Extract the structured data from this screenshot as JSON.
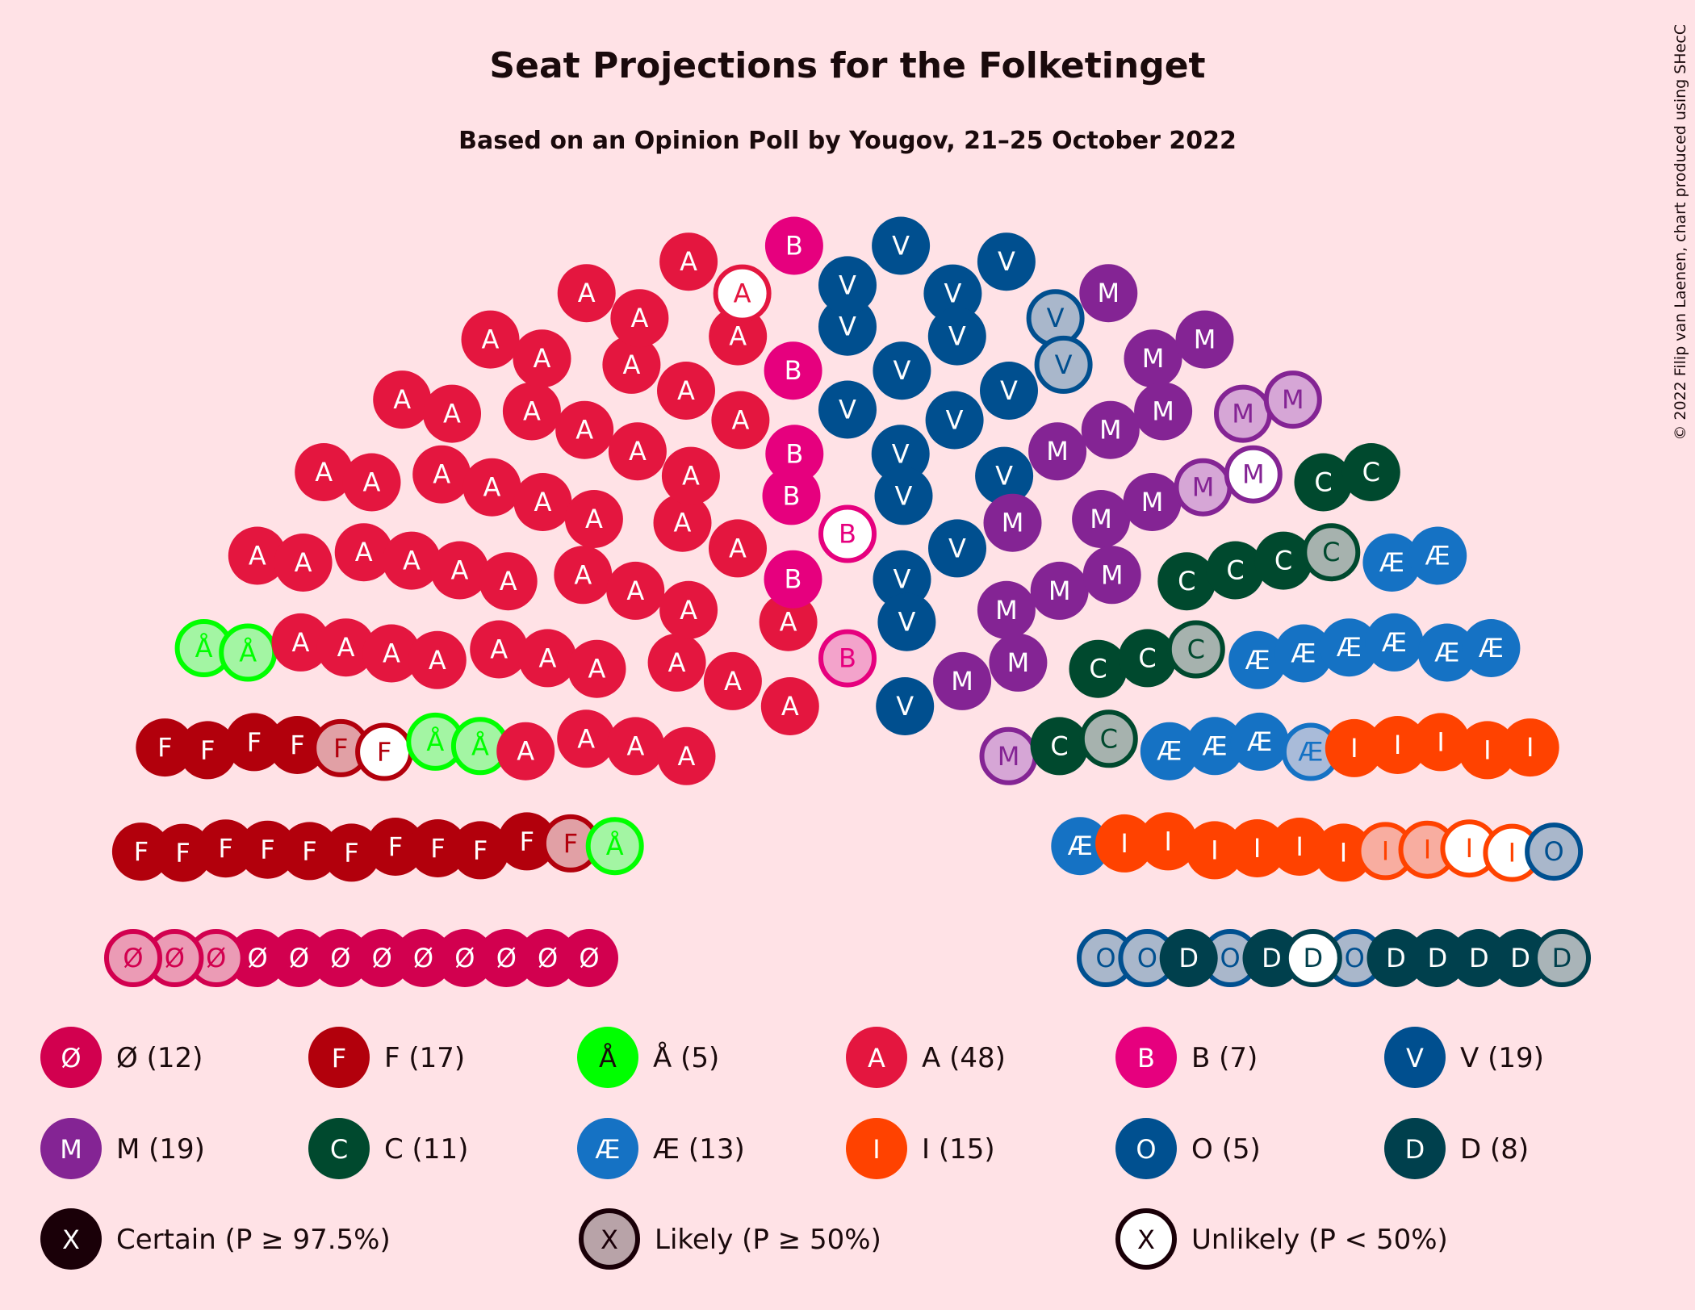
{
  "chart_data": {
    "type": "parliament",
    "title": "Seat Projections for the Folketinget",
    "subtitle": "Based on an Opinion Poll by Yougov, 21–25 October 2022",
    "credit": "© 2022 Filip van Laenen, chart produced using SHecC",
    "total_seats": 179,
    "parties": [
      {
        "symbol": "Ø",
        "label": "Ø (12)",
        "seats": 12,
        "certain": 9,
        "likely": 3,
        "unlikely": 0,
        "color": "#d2004f",
        "text_color": "#ffffff",
        "faded": "#eb9bb5"
      },
      {
        "symbol": "F",
        "label": "F (17)",
        "seats": 17,
        "certain": 14,
        "likely": 2,
        "unlikely": 1,
        "color": "#b2000c",
        "text_color": "#ffffff",
        "faded": "#e1a0a5"
      },
      {
        "symbol": "Å",
        "label": "Å (5)",
        "seats": 5,
        "certain": 0,
        "likely": 5,
        "unlikely": 0,
        "color": "#00ff00",
        "text_color": "#00c800",
        "faded": "#a3f5a3"
      },
      {
        "symbol": "A",
        "label": "A (48)",
        "seats": 48,
        "certain": 47,
        "likely": 0,
        "unlikely": 1,
        "color": "#e4163f",
        "text_color": "#ffffff",
        "faded": "#f0a0b0"
      },
      {
        "symbol": "B",
        "label": "B (7)",
        "seats": 7,
        "certain": 5,
        "likely": 1,
        "unlikely": 1,
        "color": "#e6007e",
        "text_color": "#ffffff",
        "faded": "#f3a3cb"
      },
      {
        "symbol": "V",
        "label": "V (19)",
        "seats": 19,
        "certain": 17,
        "likely": 2,
        "unlikely": 0,
        "color": "#004f8f",
        "text_color": "#ffffff",
        "faded": "#a9b7cb"
      },
      {
        "symbol": "M",
        "label": "M (19)",
        "seats": 19,
        "certain": 14,
        "likely": 4,
        "unlikely": 1,
        "color": "#842494",
        "text_color": "#ffffff",
        "faded": "#d6a6d6"
      },
      {
        "symbol": "C",
        "label": "C (11)",
        "seats": 11,
        "certain": 8,
        "likely": 3,
        "unlikely": 0,
        "color": "#00492e",
        "text_color": "#ffffff",
        "faded": "#a6b2ae"
      },
      {
        "symbol": "Æ",
        "label": "Æ (13)",
        "seats": 13,
        "certain": 12,
        "likely": 1,
        "unlikely": 0,
        "color": "#1572c4",
        "text_color": "#ffffff",
        "faded": "#a9bbd9"
      },
      {
        "symbol": "I",
        "label": "I (15)",
        "seats": 15,
        "certain": 11,
        "likely": 2,
        "unlikely": 2,
        "color": "#ff4200",
        "text_color": "#ffffff",
        "faded": "#f8ada0"
      },
      {
        "symbol": "O",
        "label": "O (5)",
        "seats": 5,
        "certain": 0,
        "likely": 5,
        "unlikely": 0,
        "color": "#005090",
        "text_color": "#005090",
        "faded": "#a9b7cb"
      },
      {
        "symbol": "D",
        "label": "D (8)",
        "seats": 8,
        "certain": 6,
        "likely": 1,
        "unlikely": 1,
        "color": "#00404d",
        "text_color": "#ffffff",
        "faded": "#a9b4b8"
      }
    ],
    "status_legend": [
      {
        "symbol": "X",
        "label": "Certain (P ≥ 97.5%)"
      },
      {
        "symbol": "X",
        "label": "Likely (P ≥ 50%)"
      },
      {
        "symbol": "X",
        "label": "Unlikely (P < 50%)"
      }
    ]
  }
}
